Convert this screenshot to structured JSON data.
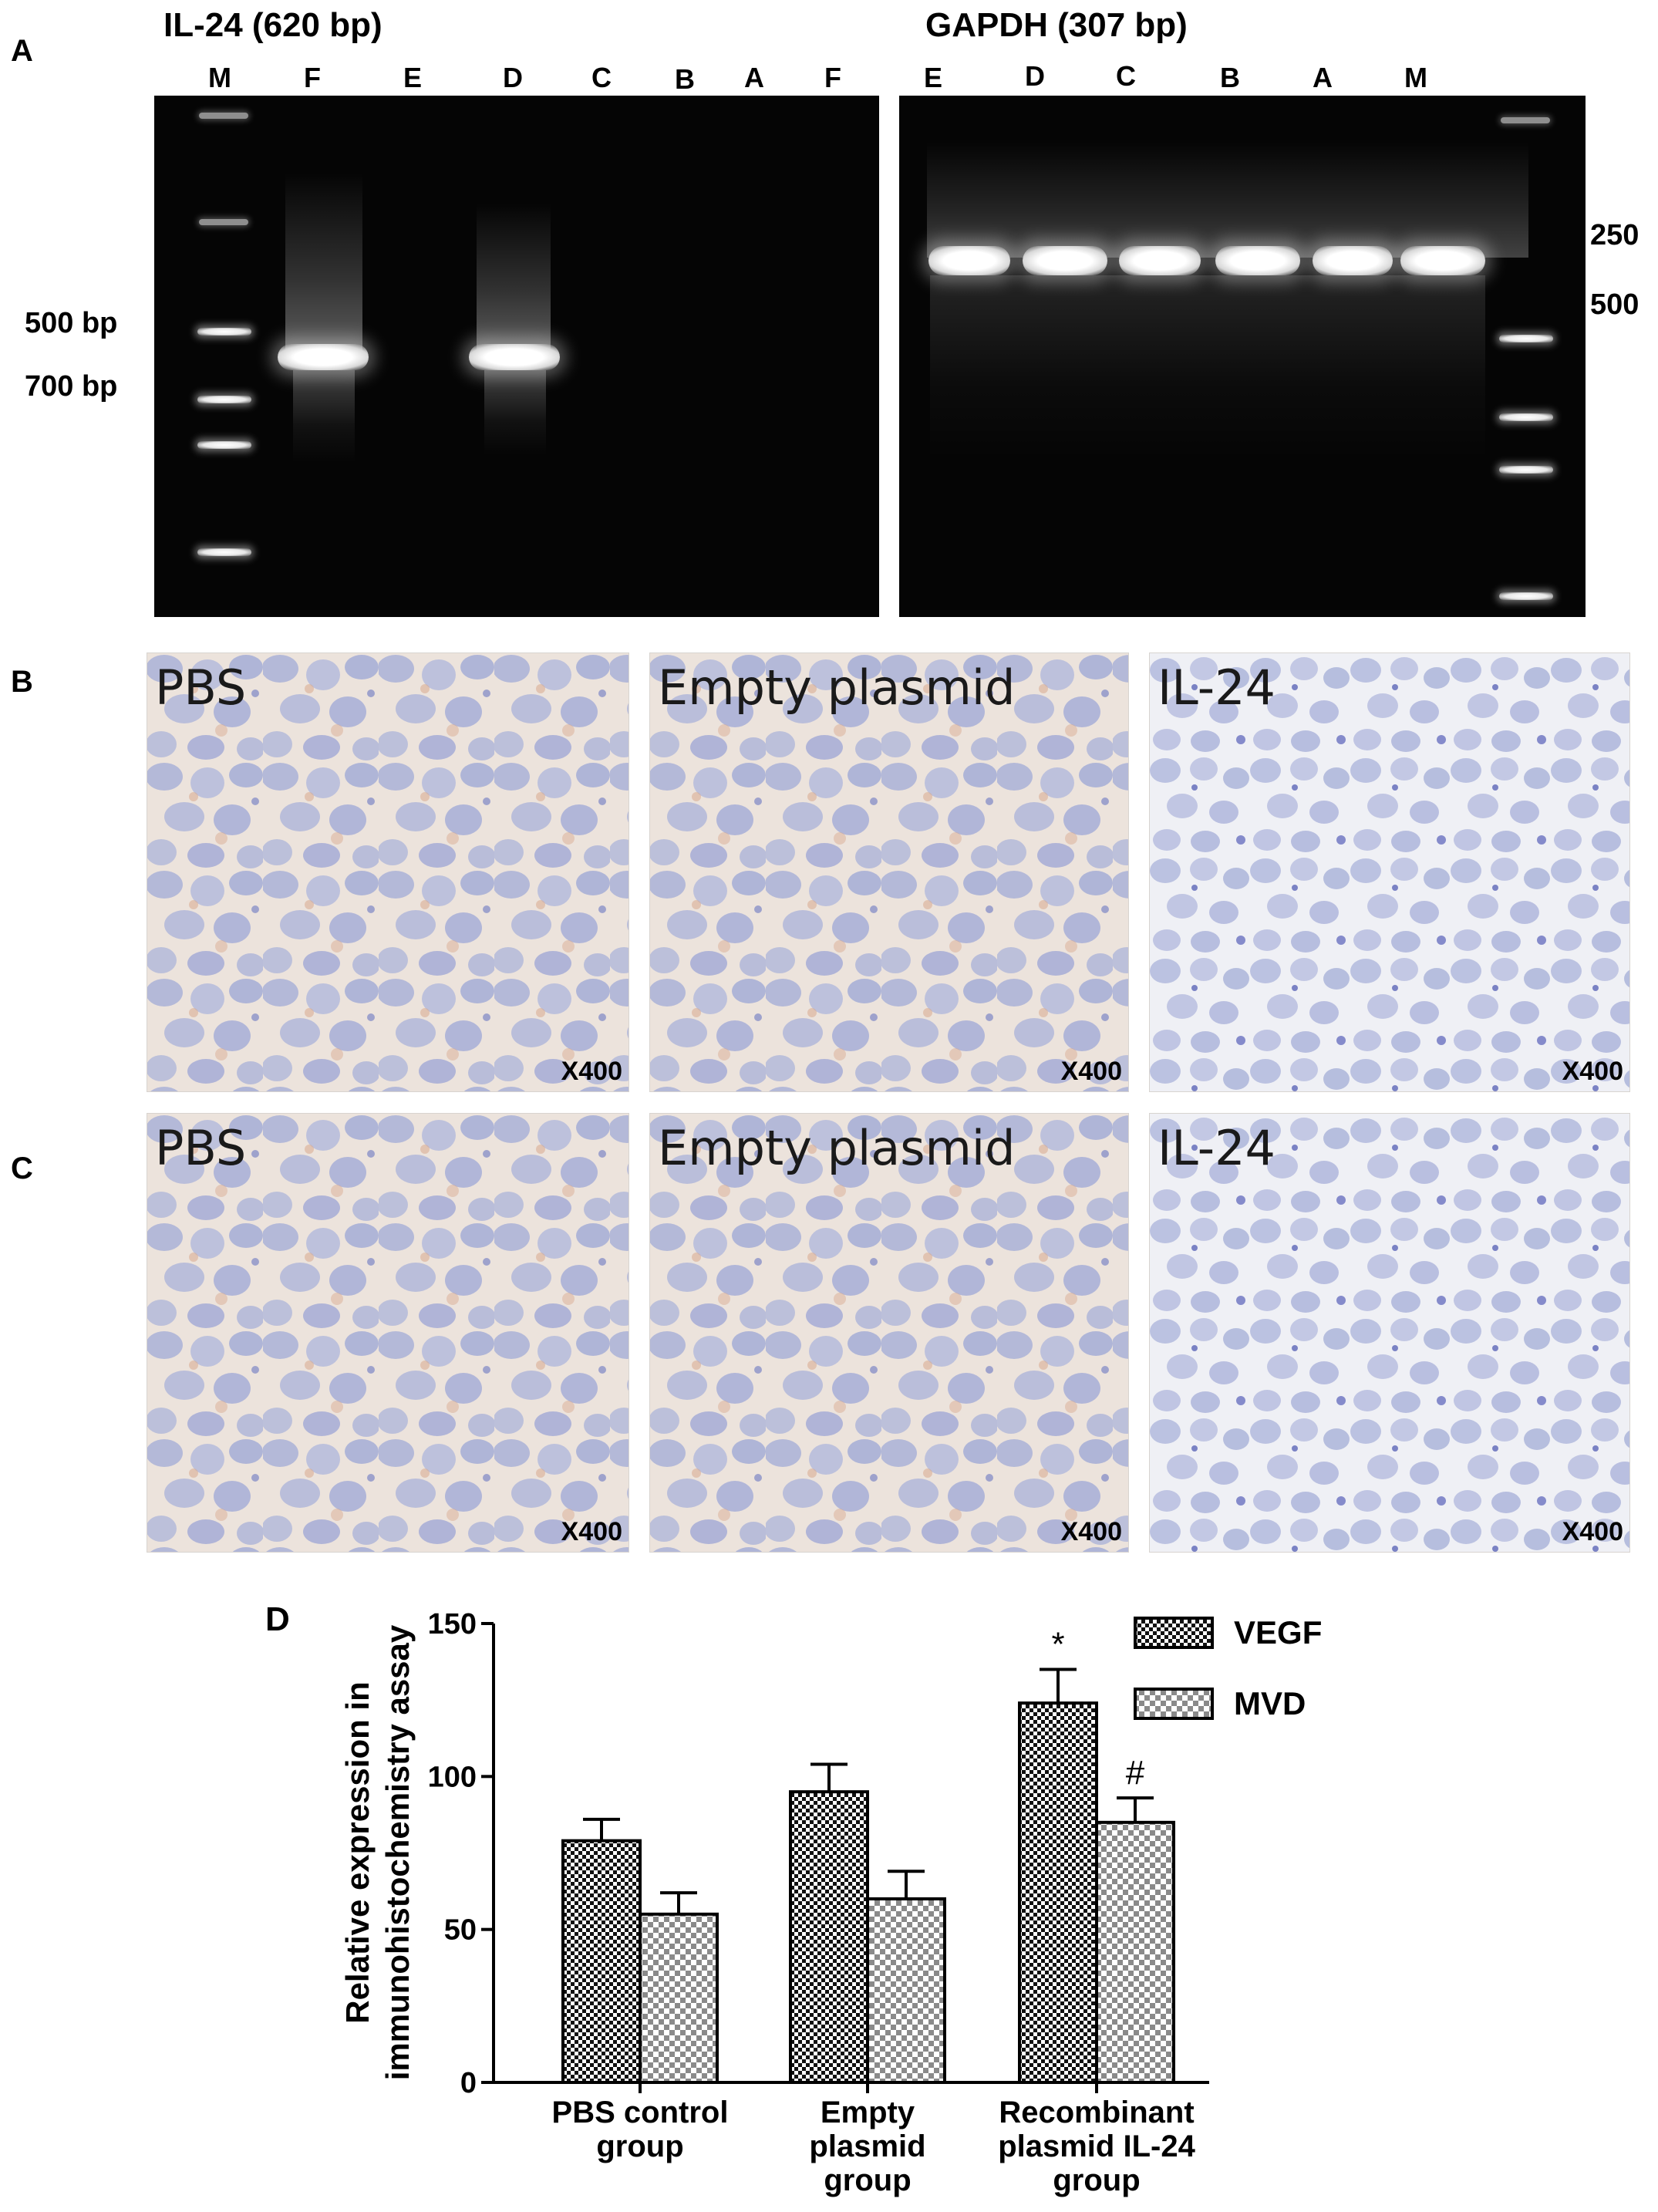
{
  "panel_a": {
    "letter": "A",
    "gel_left": {
      "title": "IL-24 (620 bp)",
      "lanes": [
        "M",
        "F",
        "E",
        "D",
        "C",
        "B",
        "A",
        "F"
      ],
      "bp_labels": [
        "500 bp",
        "700 bp"
      ]
    },
    "gel_right": {
      "title": "GAPDH (307 bp)",
      "lanes": [
        "E",
        "D",
        "C",
        "B",
        "A",
        "M"
      ],
      "bp_labels": [
        "250",
        "500"
      ]
    }
  },
  "panel_b": {
    "letter": "B",
    "images": [
      {
        "label": "PBS",
        "magnification": "X400"
      },
      {
        "label": "Empty plasmid",
        "magnification": "X400"
      },
      {
        "label": "IL-24",
        "magnification": "X400"
      }
    ]
  },
  "panel_c": {
    "letter": "C",
    "images": [
      {
        "label": "PBS",
        "magnification": "X400"
      },
      {
        "label": "Empty plasmid",
        "magnification": "X400"
      },
      {
        "label": "IL-24",
        "magnification": "X400"
      }
    ]
  },
  "panel_d": {
    "letter": "D"
  },
  "chart_data": {
    "type": "bar",
    "categories": [
      "PBS control group",
      "Empty plasmid group",
      "Recombinant plasmid IL-24 group"
    ],
    "category_lines": [
      [
        "PBS control",
        "group"
      ],
      [
        "Empty",
        "plasmid",
        "group"
      ],
      [
        "Recombinant",
        "plasmid IL-24",
        "group"
      ]
    ],
    "series": [
      {
        "name": "VEGF",
        "values": [
          79,
          95,
          124
        ],
        "errors": [
          7,
          9,
          11
        ],
        "annotations": [
          "",
          "",
          "*"
        ]
      },
      {
        "name": "MVD",
        "values": [
          55,
          60,
          85
        ],
        "errors": [
          7,
          9,
          8
        ],
        "annotations": [
          "",
          "",
          "#"
        ]
      }
    ],
    "ylabel_lines": [
      "Relative expression in",
      "immunohistochemistry assay"
    ],
    "xlabel": "",
    "ylim": [
      0,
      150
    ],
    "yticks": [
      "0",
      "50",
      "100",
      "150"
    ],
    "legend_position": "top-right",
    "grid": false
  }
}
